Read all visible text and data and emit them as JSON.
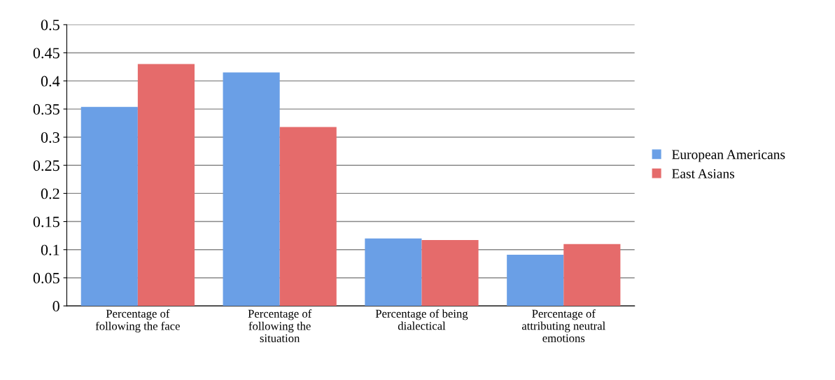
{
  "chart_data": {
    "type": "bar",
    "categories": [
      "Percentage of\nfollowing the face",
      "Percentage of\nfollowing the\nsituation",
      "Percentage of being\ndialectical",
      "Percentage of\nattributing neutral\nemotions"
    ],
    "series": [
      {
        "name": "European Americans",
        "color": "#6a9fe6",
        "values": [
          0.354,
          0.415,
          0.12,
          0.091
        ]
      },
      {
        "name": "East Asians",
        "color": "#e56b6b",
        "values": [
          0.43,
          0.318,
          0.117,
          0.11
        ]
      }
    ],
    "ylim": [
      0,
      0.5
    ],
    "yticks": [
      0,
      0.05,
      0.1,
      0.15,
      0.2,
      0.25,
      0.3,
      0.35,
      0.4,
      0.45,
      0.5
    ],
    "grid": "y",
    "legend": "right"
  }
}
